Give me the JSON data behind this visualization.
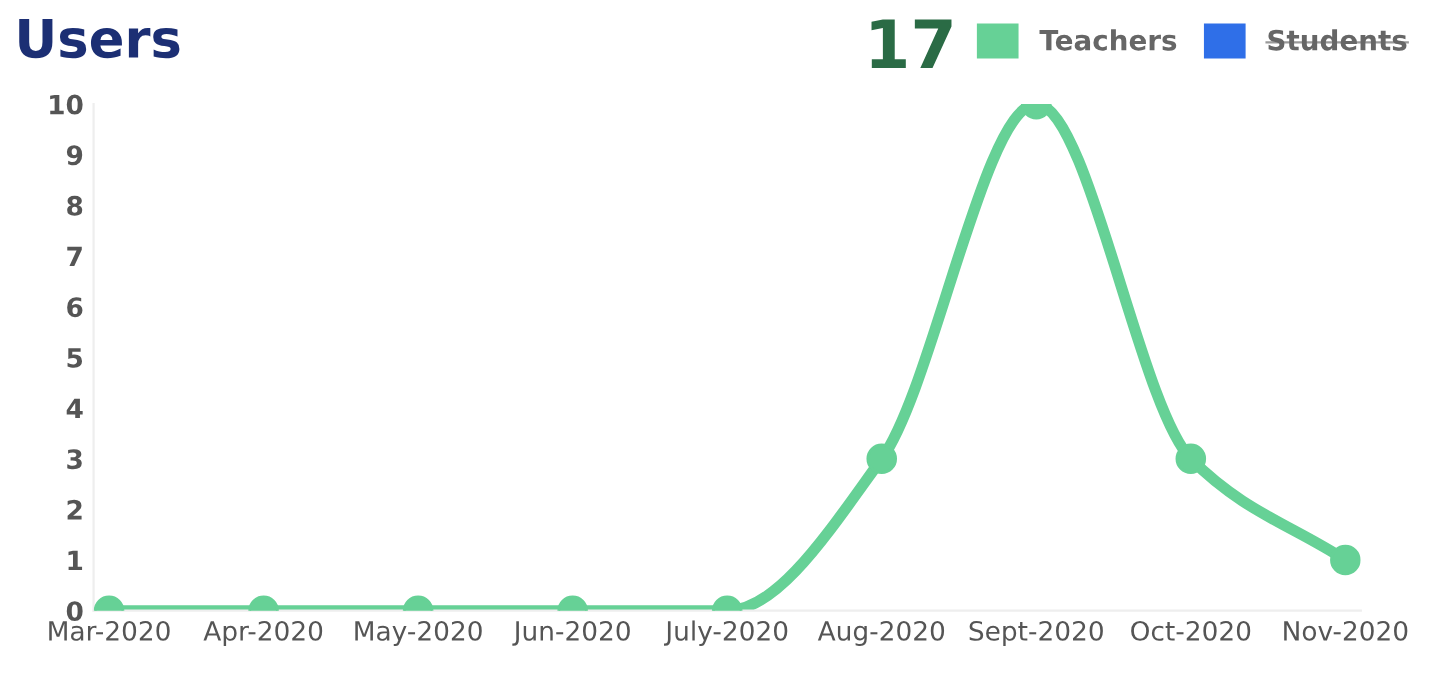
{
  "chart_data": {
    "type": "line",
    "title": "Users",
    "annotations": [
      "17"
    ],
    "categories": [
      "Mar-2020",
      "Apr-2020",
      "May-2020",
      "Jun-2020",
      "July-2020",
      "Aug-2020",
      "Sept-2020",
      "Oct-2020",
      "Nov-2020"
    ],
    "series": [
      {
        "name": "Teachers",
        "color": "#66d196",
        "values": [
          0,
          0,
          0,
          0,
          0,
          3,
          10,
          3,
          1
        ]
      },
      {
        "name": "Students",
        "color": "#2f6fe8",
        "values": [
          null,
          null,
          null,
          null,
          null,
          null,
          null,
          null,
          null
        ]
      }
    ],
    "ylim": [
      0,
      10
    ],
    "yticks": [
      0,
      1,
      2,
      3,
      4,
      5,
      6,
      7,
      8,
      9,
      10
    ],
    "grid": false,
    "legend": "top right",
    "marker": "circle",
    "line_style": "solid"
  }
}
